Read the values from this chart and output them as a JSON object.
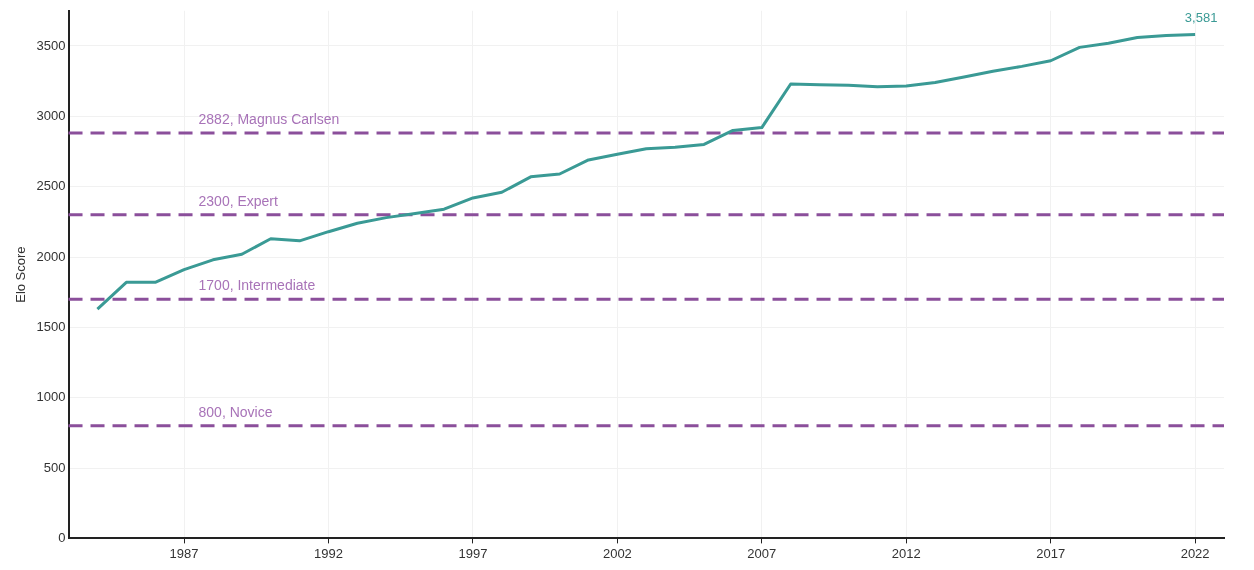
{
  "chart_data": {
    "type": "line",
    "ylabel": "Elo Score",
    "x": [
      1984,
      1985,
      1986,
      1987,
      1988,
      1989,
      1990,
      1991,
      1992,
      1993,
      1994,
      1995,
      1996,
      1997,
      1998,
      1999,
      2000,
      2001,
      2002,
      2003,
      2004,
      2005,
      2006,
      2007,
      2008,
      2009,
      2010,
      2011,
      2012,
      2013,
      2014,
      2015,
      2016,
      2017,
      2018,
      2019,
      2020,
      2021,
      2022
    ],
    "series": [
      {
        "color": "#3a9a95",
        "values": [
          1630,
          1820,
          1820,
          1910,
          1980,
          2020,
          2130,
          2115,
          2180,
          2240,
          2280,
          2310,
          2340,
          2420,
          2460,
          2570,
          2590,
          2690,
          2730,
          2770,
          2780,
          2800,
          2900,
          2920,
          3230,
          3225,
          3220,
          3210,
          3215,
          3240,
          3280,
          3320,
          3355,
          3395,
          3490,
          3520,
          3560,
          3575,
          3581
        ]
      }
    ],
    "xlim": [
      1983,
      2023
    ],
    "xticks": [
      1987,
      1992,
      1997,
      2002,
      2007,
      2012,
      2017,
      2022
    ],
    "ylim": [
      0,
      3750
    ],
    "yticks": [
      0,
      500,
      1000,
      1500,
      2000,
      2500,
      3000,
      3500
    ],
    "grid": true,
    "legend": false,
    "marker": "none",
    "line_style": "solid",
    "ref_lines": [
      {
        "axis": "y",
        "value": 2882,
        "label": "2882, Magnus Carlsen",
        "color": "#8b4f9b",
        "line_style": "dashed"
      },
      {
        "axis": "y",
        "value": 2300,
        "label": "2300, Expert",
        "color": "#8b4f9b",
        "line_style": "dashed"
      },
      {
        "axis": "y",
        "value": 1700,
        "label": "1700, Intermediate",
        "color": "#8b4f9b",
        "line_style": "dashed"
      },
      {
        "axis": "y",
        "value": 800,
        "label": "800, Novice",
        "color": "#8b4f9b",
        "line_style": "dashed"
      }
    ],
    "annotations": [
      {
        "text": "3,581",
        "x": 2022,
        "y": 3581
      }
    ]
  }
}
